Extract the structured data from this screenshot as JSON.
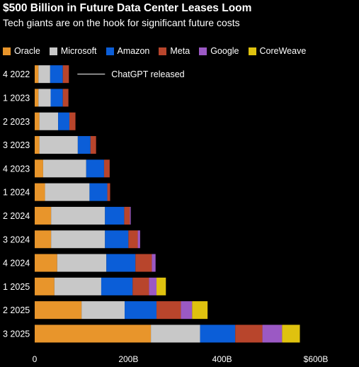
{
  "header": {
    "title": "$500 Billion in Future Data Center Leases Loom",
    "subtitle": "Tech giants are on the hook for significant future costs"
  },
  "chart_data": {
    "type": "bar",
    "orientation": "horizontal",
    "stacked": true,
    "categories": [
      "4 2022",
      "1 2023",
      "2 2023",
      "3 2023",
      "4 2023",
      "1 2024",
      "2 2024",
      "3 2024",
      "4 2024",
      "1 2025",
      "2 2025",
      "3 2025"
    ],
    "series": [
      {
        "name": "Oracle",
        "color": "#e8952b",
        "values": [
          8,
          8,
          10,
          10,
          18,
          22,
          35,
          35,
          48,
          42,
          100,
          248
        ]
      },
      {
        "name": "Microsoft",
        "color": "#c8c8c8",
        "values": [
          25,
          26,
          40,
          82,
          92,
          95,
          115,
          115,
          105,
          100,
          92,
          105
        ]
      },
      {
        "name": "Amazon",
        "color": "#0b5ed8",
        "values": [
          27,
          26,
          24,
          27,
          38,
          38,
          41,
          50,
          62,
          67,
          68,
          75
        ]
      },
      {
        "name": "Meta",
        "color": "#b8452c",
        "values": [
          13,
          12,
          13,
          12,
          12,
          6,
          12,
          20,
          35,
          35,
          52,
          58
        ]
      },
      {
        "name": "Google",
        "color": "#9b59c4",
        "values": [
          0,
          0,
          0,
          0,
          0,
          0,
          2,
          5,
          8,
          16,
          24,
          42
        ]
      },
      {
        "name": "CoreWeave",
        "color": "#dfc20f",
        "values": [
          0,
          0,
          0,
          0,
          0,
          0,
          0,
          0,
          0,
          20,
          33,
          38
        ]
      }
    ],
    "xlim": [
      0,
      600
    ],
    "xticks": [
      {
        "value": 0,
        "label": "0"
      },
      {
        "value": 200,
        "label": "200B"
      },
      {
        "value": 400,
        "label": "400B"
      },
      {
        "value": 600,
        "label": "$600B"
      }
    ],
    "annotation": {
      "category": "4 2022",
      "text": "ChatGPT released"
    },
    "legend_position": "top",
    "grid": false
  }
}
